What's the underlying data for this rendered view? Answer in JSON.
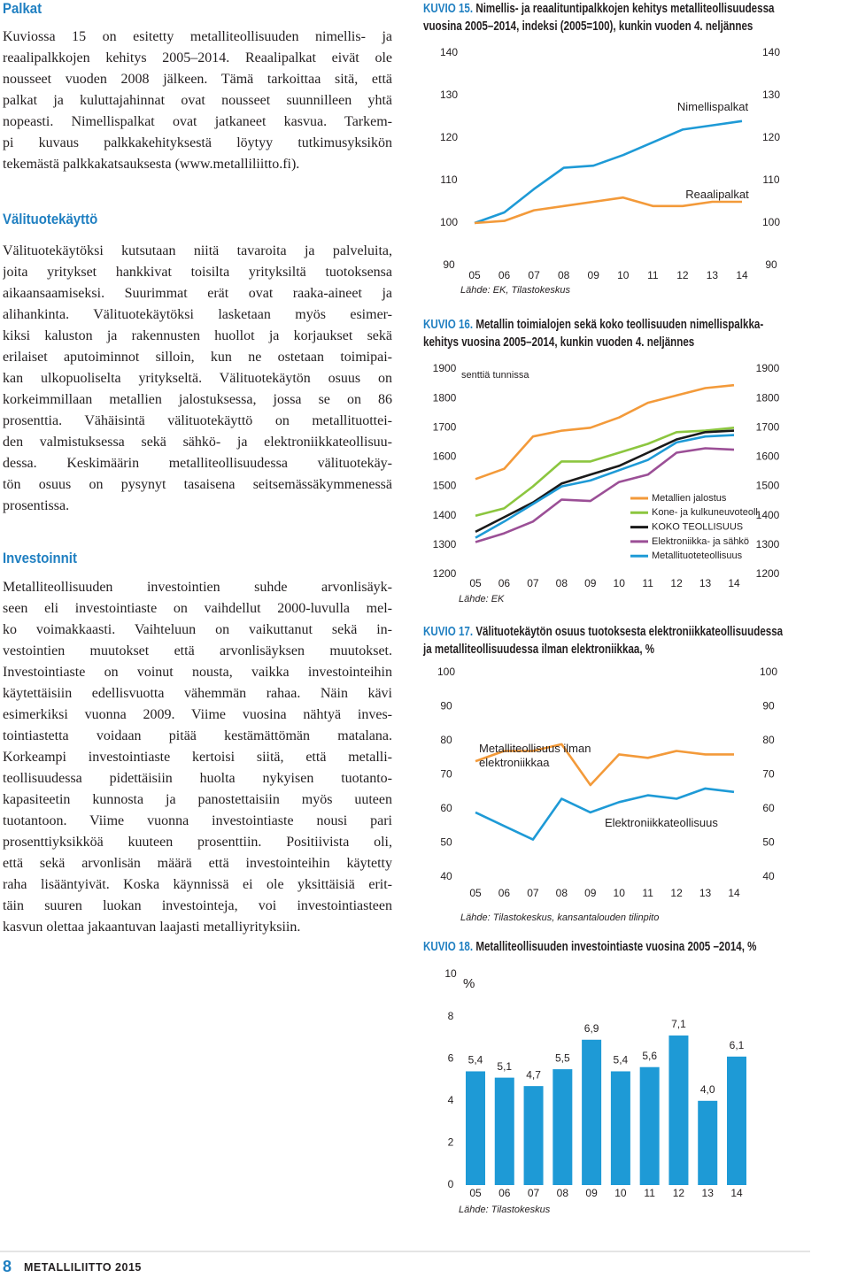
{
  "sections": [
    {
      "heading": "Palkat",
      "lines": [
        "Kuviossa 15 on esitetty metalliteollisuuden nimellis- ja",
        "reaalipalkkojen kehitys 2005–2014. Reaalipalkat eivät ole",
        "nousseet vuoden 2008 jälkeen. Tämä tarkoittaa sitä, että",
        "palkat ja kuluttajahinnat ovat nousseet suunnilleen yhtä",
        "nopeasti. Nimellispalkat ovat jatkaneet kasvua. Tarkem-",
        "pi kuvaus palkkakehityksestä löytyy tutkimusyksikön",
        "tekemästä palkkakatsauksesta (www.metalliliitto.fi)."
      ]
    },
    {
      "heading": "Välituotekäyttö",
      "lines": [
        "Välituotekäytöksi kutsutaan niitä tavaroita ja palveluita,",
        "joita yritykset hankkivat toisilta yrityksiltä tuotoksensa",
        "aikaansaamiseksi. Suurimmat erät ovat raaka-aineet ja",
        "alihankinta. Välituotekäytöksi lasketaan myös esimer-",
        "kiksi kaluston ja rakennusten huollot ja korjaukset sekä",
        "erilaiset aputoiminnot silloin, kun ne ostetaan toimipai-",
        "kan ulkopuoliselta yritykseltä. Välituotekäytön osuus on",
        "korkeimmillaan metallien jalostuksessa, jossa se on 86",
        "prosenttia. Vähäisintä välituotekäyttö on metallituottei-",
        "den valmistuksessa sekä sähkö- ja elektroniikkateollisuu-",
        "dessa. Keskimäärin metalliteollisuudessa välituotekäy-",
        "tön osuus on pysynyt tasaisena seitsemässäkymmenessä",
        "prosentissa."
      ]
    },
    {
      "heading": "Investoinnit",
      "lines": [
        "Metalliteollisuuden investointien suhde arvonlisäyk-",
        "seen eli investointiaste on vaihdellut 2000-luvulla mel-",
        "ko voimakkaasti. Vaihteluun on vaikuttanut sekä in-",
        "vestointien muutokset että arvonlisäyksen muutokset.",
        "Investointiaste on voinut nousta, vaikka investointeihin",
        "käytettäisiin edellisvuotta vähemmän rahaa. Näin kävi",
        "esimerkiksi vuonna 2009. Viime vuosina nähtyä inves-",
        "tointiastetta voidaan pitää kestämättömän matalana.",
        "Korkeampi investointiaste kertoisi siitä, että metalli-",
        "teollisuudessa pidettäisiin huolta nykyisen tuotanto-",
        "kapasiteetin kunnosta ja panostettaisiin myös uuteen",
        "tuotantoon. Viime vuonna investointiaste nousi pari",
        "prosenttiyksikköä kuuteen prosenttiin. Positiivista oli,",
        "että sekä arvonlisän määrä että investointeihin käytetty",
        "raha lisääntyivät. Koska käynnissä ei ole yksittäisiä erit-",
        "täin suuren luokan investointeja, voi investointiasteen",
        "kasvun olettaa jakaantuvan laajasti metalliyrityksiin."
      ]
    }
  ],
  "chart_data": [
    {
      "type": "line",
      "label": "KUVIO 15.",
      "title_lines": [
        "Nimellis- ja reaalituntipalkkojen kehitys metalliteollisuudessa",
        "vuosina 2005–2014, indeksi (2005=100), kunkin vuoden 4. neljännes"
      ],
      "categories": [
        "05",
        "06",
        "07",
        "08",
        "09",
        "10",
        "11",
        "12",
        "13",
        "14"
      ],
      "ylim": [
        90,
        140
      ],
      "yticks": [
        90,
        100,
        110,
        120,
        130,
        140
      ],
      "mirror_yticks": true,
      "legend": false,
      "series": [
        {
          "name": "Nimellispalkat",
          "color": "#1e9ad6",
          "values": [
            100,
            102.5,
            108,
            113,
            113.5,
            116,
            119,
            122,
            123,
            124
          ]
        },
        {
          "name": "Reaalipalkat",
          "color": "#f39a3a",
          "values": [
            100,
            100.5,
            103,
            104,
            105,
            106,
            104,
            104,
            105,
            105
          ]
        }
      ],
      "source": "Lähde: EK, Tilastokeskus"
    },
    {
      "type": "line",
      "label": "KUVIO 16.",
      "title_lines": [
        "Metallin toimialojen sekä koko teollisuuden nimellispalkka-",
        "kehitys vuosina 2005–2014, kunkin vuoden 4. neljännes"
      ],
      "categories": [
        "05",
        "06",
        "07",
        "08",
        "09",
        "10",
        "11",
        "12",
        "13",
        "14"
      ],
      "ylim": [
        1200,
        1900
      ],
      "yticks": [
        1200,
        1300,
        1400,
        1500,
        1600,
        1700,
        1800,
        1900
      ],
      "mirror_yticks": true,
      "legend": true,
      "unit_label": "senttiä tunnissa",
      "series": [
        {
          "name": "Metallien jalostus",
          "color": "#f39a3a",
          "values": [
            1525,
            1560,
            1670,
            1690,
            1700,
            1735,
            1785,
            1810,
            1835,
            1845
          ]
        },
        {
          "name": "Kone- ja kulkuneuvoteoll.",
          "color": "#8cc63f",
          "values": [
            1400,
            1425,
            1500,
            1585,
            1585,
            1615,
            1645,
            1685,
            1690,
            1700
          ]
        },
        {
          "name": "KOKO TEOLLISUUS",
          "color": "#1a1a1a",
          "values": [
            1345,
            1395,
            1445,
            1510,
            1540,
            1570,
            1615,
            1660,
            1685,
            1690
          ]
        },
        {
          "name": "Elektroniikka- ja sähkö",
          "color": "#9b4f96",
          "values": [
            1310,
            1340,
            1380,
            1455,
            1450,
            1515,
            1540,
            1615,
            1630,
            1625
          ]
        },
        {
          "name": "Metallituoteteollisuus",
          "color": "#1e9ad6",
          "values": [
            1325,
            1380,
            1440,
            1500,
            1520,
            1555,
            1590,
            1650,
            1670,
            1675
          ]
        }
      ],
      "source": "Lähde: EK"
    },
    {
      "type": "line",
      "label": "KUVIO 17.",
      "title_lines": [
        "Välituotekäytön osuus tuotoksesta elektroniikkateollisuudessa",
        "ja metalliteollisuudessa ilman elektroniikkaa, %"
      ],
      "categories": [
        "05",
        "06",
        "07",
        "08",
        "09",
        "10",
        "11",
        "12",
        "13",
        "14"
      ],
      "ylim": [
        40,
        100
      ],
      "yticks": [
        40,
        50,
        60,
        70,
        80,
        90,
        100
      ],
      "mirror_yticks": true,
      "legend": false,
      "series": [
        {
          "name": "Metalliteollisuus ilman elektroniikkaa",
          "color": "#f39a3a",
          "values": [
            74,
            77,
            77,
            79,
            67,
            76,
            75,
            77,
            76,
            76
          ]
        },
        {
          "name": "Elektroniikkateollisuus",
          "color": "#1e9ad6",
          "values": [
            59,
            55,
            51,
            63,
            59,
            62,
            64,
            63,
            66,
            65
          ]
        }
      ],
      "source": "Lähde: Tilastokeskus, kansantalouden tilinpito"
    },
    {
      "type": "bar",
      "label": "KUVIO 18.",
      "title_lines": [
        "Metalliteollisuuden investointiaste vuosina 2005 –2014, %"
      ],
      "categories": [
        "05",
        "06",
        "07",
        "08",
        "09",
        "10",
        "11",
        "12",
        "13",
        "14"
      ],
      "ylim": [
        0,
        10
      ],
      "yticks": [
        0,
        2,
        4,
        6,
        8,
        10
      ],
      "mirror_yticks": false,
      "unit_label": "%",
      "color": "#1e9ad6",
      "values": [
        5.4,
        5.1,
        4.7,
        5.5,
        6.9,
        5.4,
        5.6,
        7.1,
        4.0,
        6.1
      ],
      "value_labels": [
        "5,4",
        "5,1",
        "4,7",
        "5,5",
        "6,9",
        "5,4",
        "5,6",
        "7,1",
        "4,0",
        "6,1"
      ],
      "source": "Lähde: Tilastokeskus"
    }
  ],
  "footer": {
    "page": "8",
    "publication": "METALLILIITTO 2015"
  }
}
